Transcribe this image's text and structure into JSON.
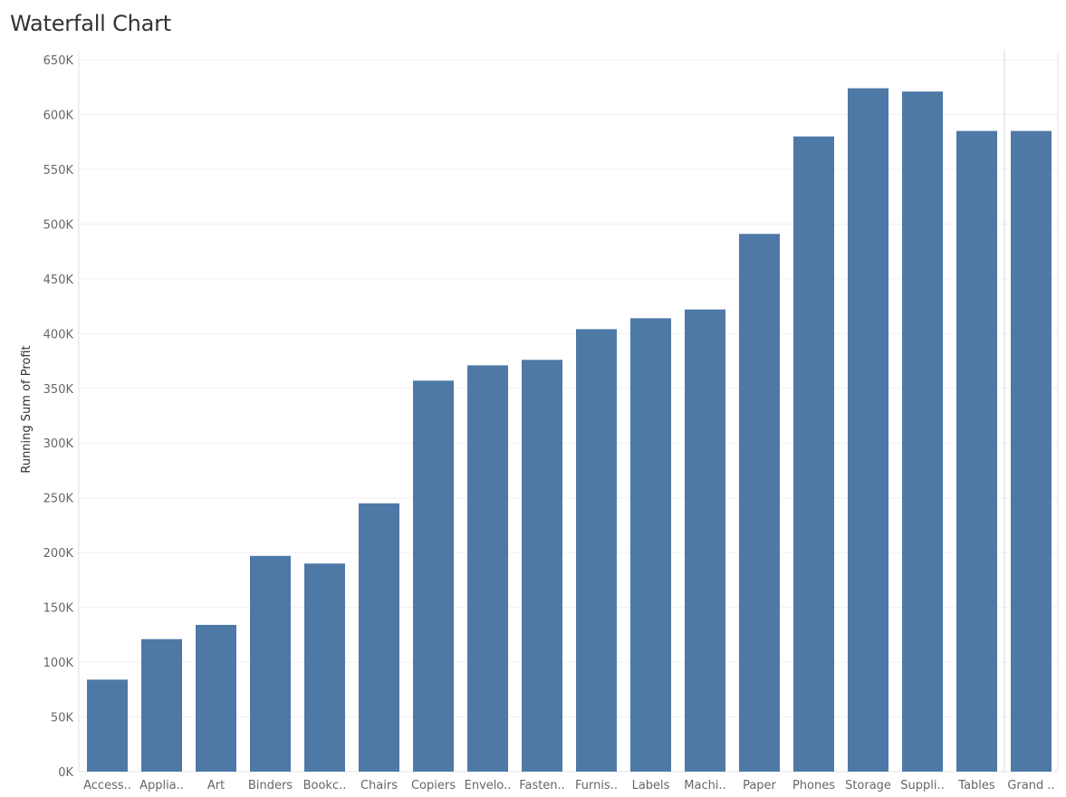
{
  "chart_data": {
    "type": "bar",
    "title": "Waterfall Chart",
    "ylabel": "Running Sum of Profit",
    "xlabel": "",
    "ylim": [
      0,
      650000
    ],
    "yticks": [
      0,
      50000,
      100000,
      150000,
      200000,
      250000,
      300000,
      350000,
      400000,
      450000,
      500000,
      550000,
      600000,
      650000
    ],
    "ytick_labels": [
      "0K",
      "50K",
      "100K",
      "150K",
      "200K",
      "250K",
      "300K",
      "350K",
      "400K",
      "450K",
      "500K",
      "550K",
      "600K",
      "650K"
    ],
    "categories": [
      "Access..",
      "Applia..",
      "Art",
      "Binders",
      "Bookc..",
      "Chairs",
      "Copiers",
      "Envelo..",
      "Fasten..",
      "Furnis..",
      "Labels",
      "Machi..",
      "Paper",
      "Phones",
      "Storage",
      "Suppli..",
      "Tables",
      "Grand .."
    ],
    "values": [
      84000,
      121000,
      134000,
      197000,
      190000,
      245000,
      357000,
      371000,
      376000,
      404000,
      414000,
      422000,
      491000,
      580000,
      624000,
      621000,
      585000,
      585000
    ],
    "bar_color": "#4e79a7",
    "grid": true,
    "grand_total_separator": true
  }
}
